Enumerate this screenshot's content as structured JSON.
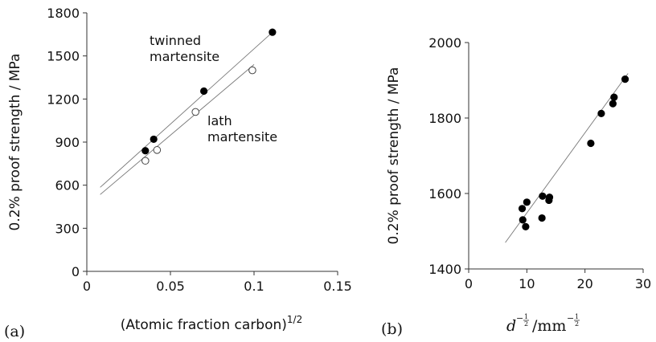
{
  "chart_data": [
    {
      "type": "scatter",
      "panel_label": "(a)",
      "xlabel": "(Atomic fraction carbon)",
      "xlabel_superscript": "1/2",
      "ylabel": "0.2% proof strength / MPa",
      "xlim": [
        0,
        0.15
      ],
      "ylim": [
        0,
        1800
      ],
      "xticks": [
        "0",
        "0.05",
        "0.1",
        "0.15"
      ],
      "yticks": [
        "0",
        "300",
        "600",
        "900",
        "1200",
        "1500",
        "1800"
      ],
      "grid": false,
      "annotations": [
        {
          "lines": [
            "twinned",
            "martensite"
          ]
        },
        {
          "lines": [
            "lath",
            "martensite"
          ]
        }
      ],
      "series": [
        {
          "marker": "filled",
          "x": [
            0.035,
            0.04,
            0.07,
            0.111
          ],
          "y": [
            840,
            920,
            1255,
            1665
          ],
          "fit": {
            "x": [
              0.008,
              0.111
            ],
            "y": [
              585,
              1665
            ]
          }
        },
        {
          "marker": "open",
          "x": [
            0.035,
            0.042,
            0.065,
            0.099
          ],
          "y": [
            770,
            845,
            1110,
            1400
          ],
          "fit": {
            "x": [
              0.008,
              0.1
            ],
            "y": [
              535,
              1440
            ]
          }
        }
      ]
    },
    {
      "type": "scatter",
      "panel_label": "(b)",
      "xlabel": "d^-1/2 / mm^-1/2",
      "ylabel": "0.2% proof strength / MPa",
      "xlim": [
        0,
        30
      ],
      "ylim": [
        1400,
        2000
      ],
      "xticks": [
        "0",
        "10",
        "20",
        "30"
      ],
      "yticks": [
        "1400",
        "1600",
        "1800",
        "2000"
      ],
      "grid": false,
      "series": [
        {
          "marker": "filled",
          "x": [
            9.2,
            9.3,
            9.8,
            10.0,
            12.6,
            12.7,
            13.8,
            13.9,
            21.0,
            22.8,
            24.8,
            25.0,
            26.9
          ],
          "y": [
            1560,
            1530,
            1512,
            1577,
            1535,
            1593,
            1582,
            1590,
            1733,
            1812,
            1838,
            1855,
            1903
          ],
          "fit": {
            "x": [
              6.3,
              27.4
            ],
            "y": [
              1470,
              1918
            ]
          }
        }
      ]
    }
  ]
}
